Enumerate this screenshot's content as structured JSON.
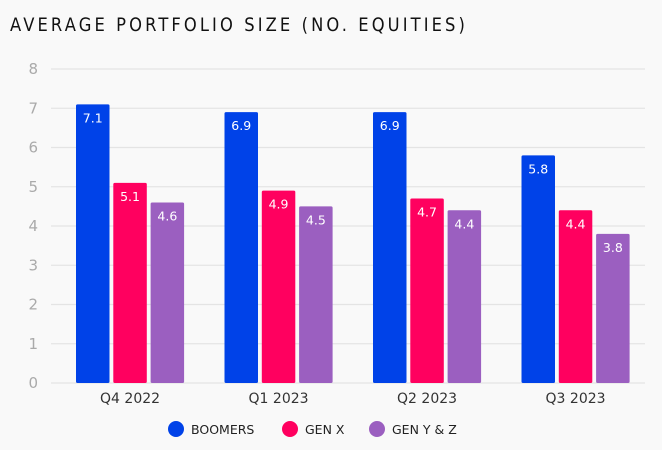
{
  "chart_data": {
    "type": "bar",
    "title": "AVERAGE PORTFOLIO SIZE (NO. EQUITIES)",
    "xlabel": "",
    "ylabel": "",
    "categories": [
      "Q4 2022",
      "Q1 2023",
      "Q2 2023",
      "Q3 2023"
    ],
    "series": [
      {
        "name": "BOOMERS",
        "color": "#0042e8",
        "values": [
          7.1,
          6.9,
          6.9,
          5.8
        ]
      },
      {
        "name": "GEN X",
        "color": "#ff005f",
        "values": [
          5.1,
          4.9,
          4.7,
          4.4
        ]
      },
      {
        "name": "GEN Y & Z",
        "color": "#9b5fc0",
        "values": [
          4.6,
          4.5,
          4.4,
          3.8
        ]
      }
    ],
    "ylim": [
      0,
      8
    ],
    "yticks": [
      0,
      1,
      2,
      3,
      4,
      5,
      6,
      7,
      8
    ],
    "grid": true,
    "data_labels": true,
    "legend_position": "bottom"
  }
}
